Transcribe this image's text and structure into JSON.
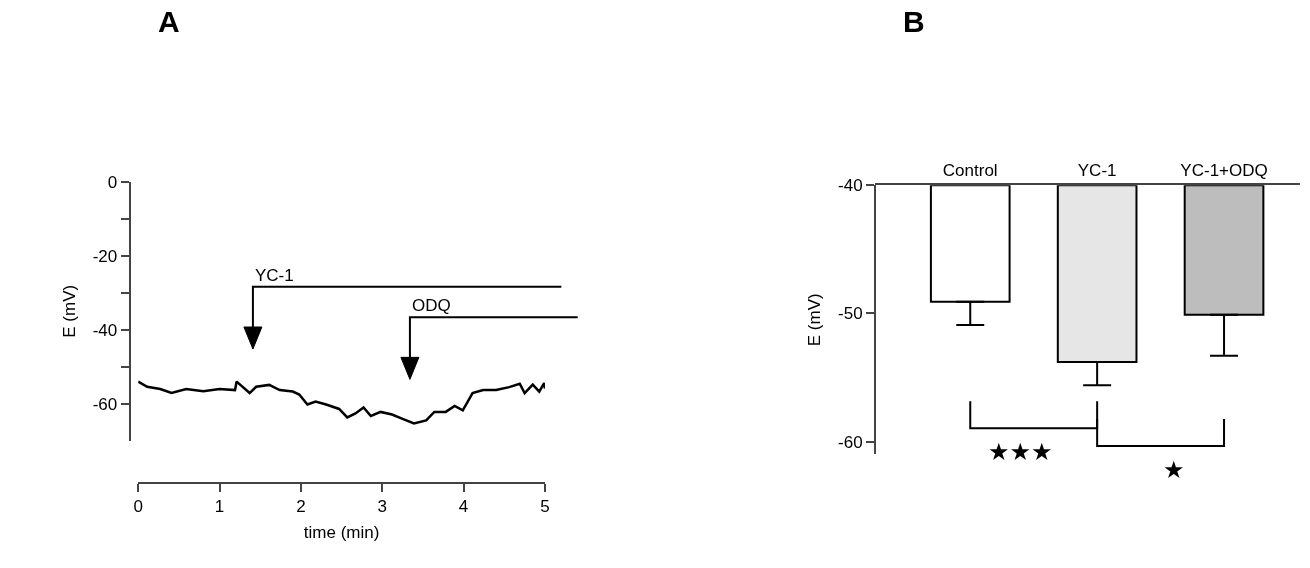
{
  "chart_data": [
    {
      "type": "line",
      "title": "A",
      "xlabel": "time (min)",
      "ylabel": "E (mV)",
      "x": [
        0,
        0.11,
        0.27,
        0.41,
        0.59,
        0.8,
        1.0,
        1.19,
        1.21,
        1.37,
        1.45,
        1.61,
        1.74,
        1.9,
        1.98,
        2.08,
        2.18,
        2.31,
        2.47,
        2.57,
        2.67,
        2.77,
        2.86,
        2.98,
        3.12,
        3.25,
        3.39,
        3.54,
        3.64,
        3.78,
        3.89,
        3.99,
        4.11,
        4.24,
        4.4,
        4.56,
        4.69,
        4.75,
        4.85,
        4.93,
        4.99,
        5.0
      ],
      "values": [
        -54,
        -55.4,
        -56,
        -57.1,
        -56,
        -56.6,
        -56,
        -56.3,
        -54,
        -57.1,
        -55.4,
        -54.9,
        -56.3,
        -56.7,
        -57.5,
        -60.2,
        -59.4,
        -60.2,
        -61.4,
        -63.7,
        -62.6,
        -61,
        -63.3,
        -62.2,
        -62.9,
        -64.1,
        -65.3,
        -64.5,
        -62.2,
        -62.2,
        -60.6,
        -61.8,
        -57.1,
        -56.3,
        -56.3,
        -55.5,
        -54.6,
        -57.1,
        -54.8,
        -56.7,
        -54.4,
        -55.9
      ],
      "color": "#000000",
      "ref_lines": [
        {
          "axis": "x",
          "value": 1.41,
          "label": "YC-1"
        },
        {
          "axis": "x",
          "value": 3.34,
          "label": "ODQ"
        }
      ],
      "xlim": [
        0,
        5
      ],
      "xticks": [
        0,
        1,
        2,
        3,
        4,
        5
      ],
      "ylim": [
        -70,
        0
      ],
      "yticks": [
        0,
        {
          "value": -10,
          "label": null
        },
        -20,
        {
          "value": -30,
          "label": null
        },
        -40,
        {
          "value": -50,
          "label": null
        },
        -60
      ],
      "grid": false,
      "marker": "none",
      "line_style": "solid"
    },
    {
      "type": "bar",
      "title": "B",
      "ylabel": "E (mV)",
      "categories": [
        "Control",
        "YC-1",
        "YC-1+ODQ"
      ],
      "values": [
        -9.1,
        -13.8,
        -10.1
      ],
      "base": [
        -40,
        -40,
        -40
      ],
      "errors": [
        [
          -50.9,
          -49.1
        ],
        [
          -55.6,
          -53.8
        ],
        [
          -53.3,
          -50.1
        ]
      ],
      "colors": [
        "#ffffff",
        "#e6e6e6",
        "#bdbdbd"
      ],
      "annotations": [
        "★★★",
        "★"
      ],
      "ylim": [
        -61,
        -40
      ],
      "yticks": [
        -40,
        -50,
        -60
      ],
      "grid": false
    }
  ]
}
